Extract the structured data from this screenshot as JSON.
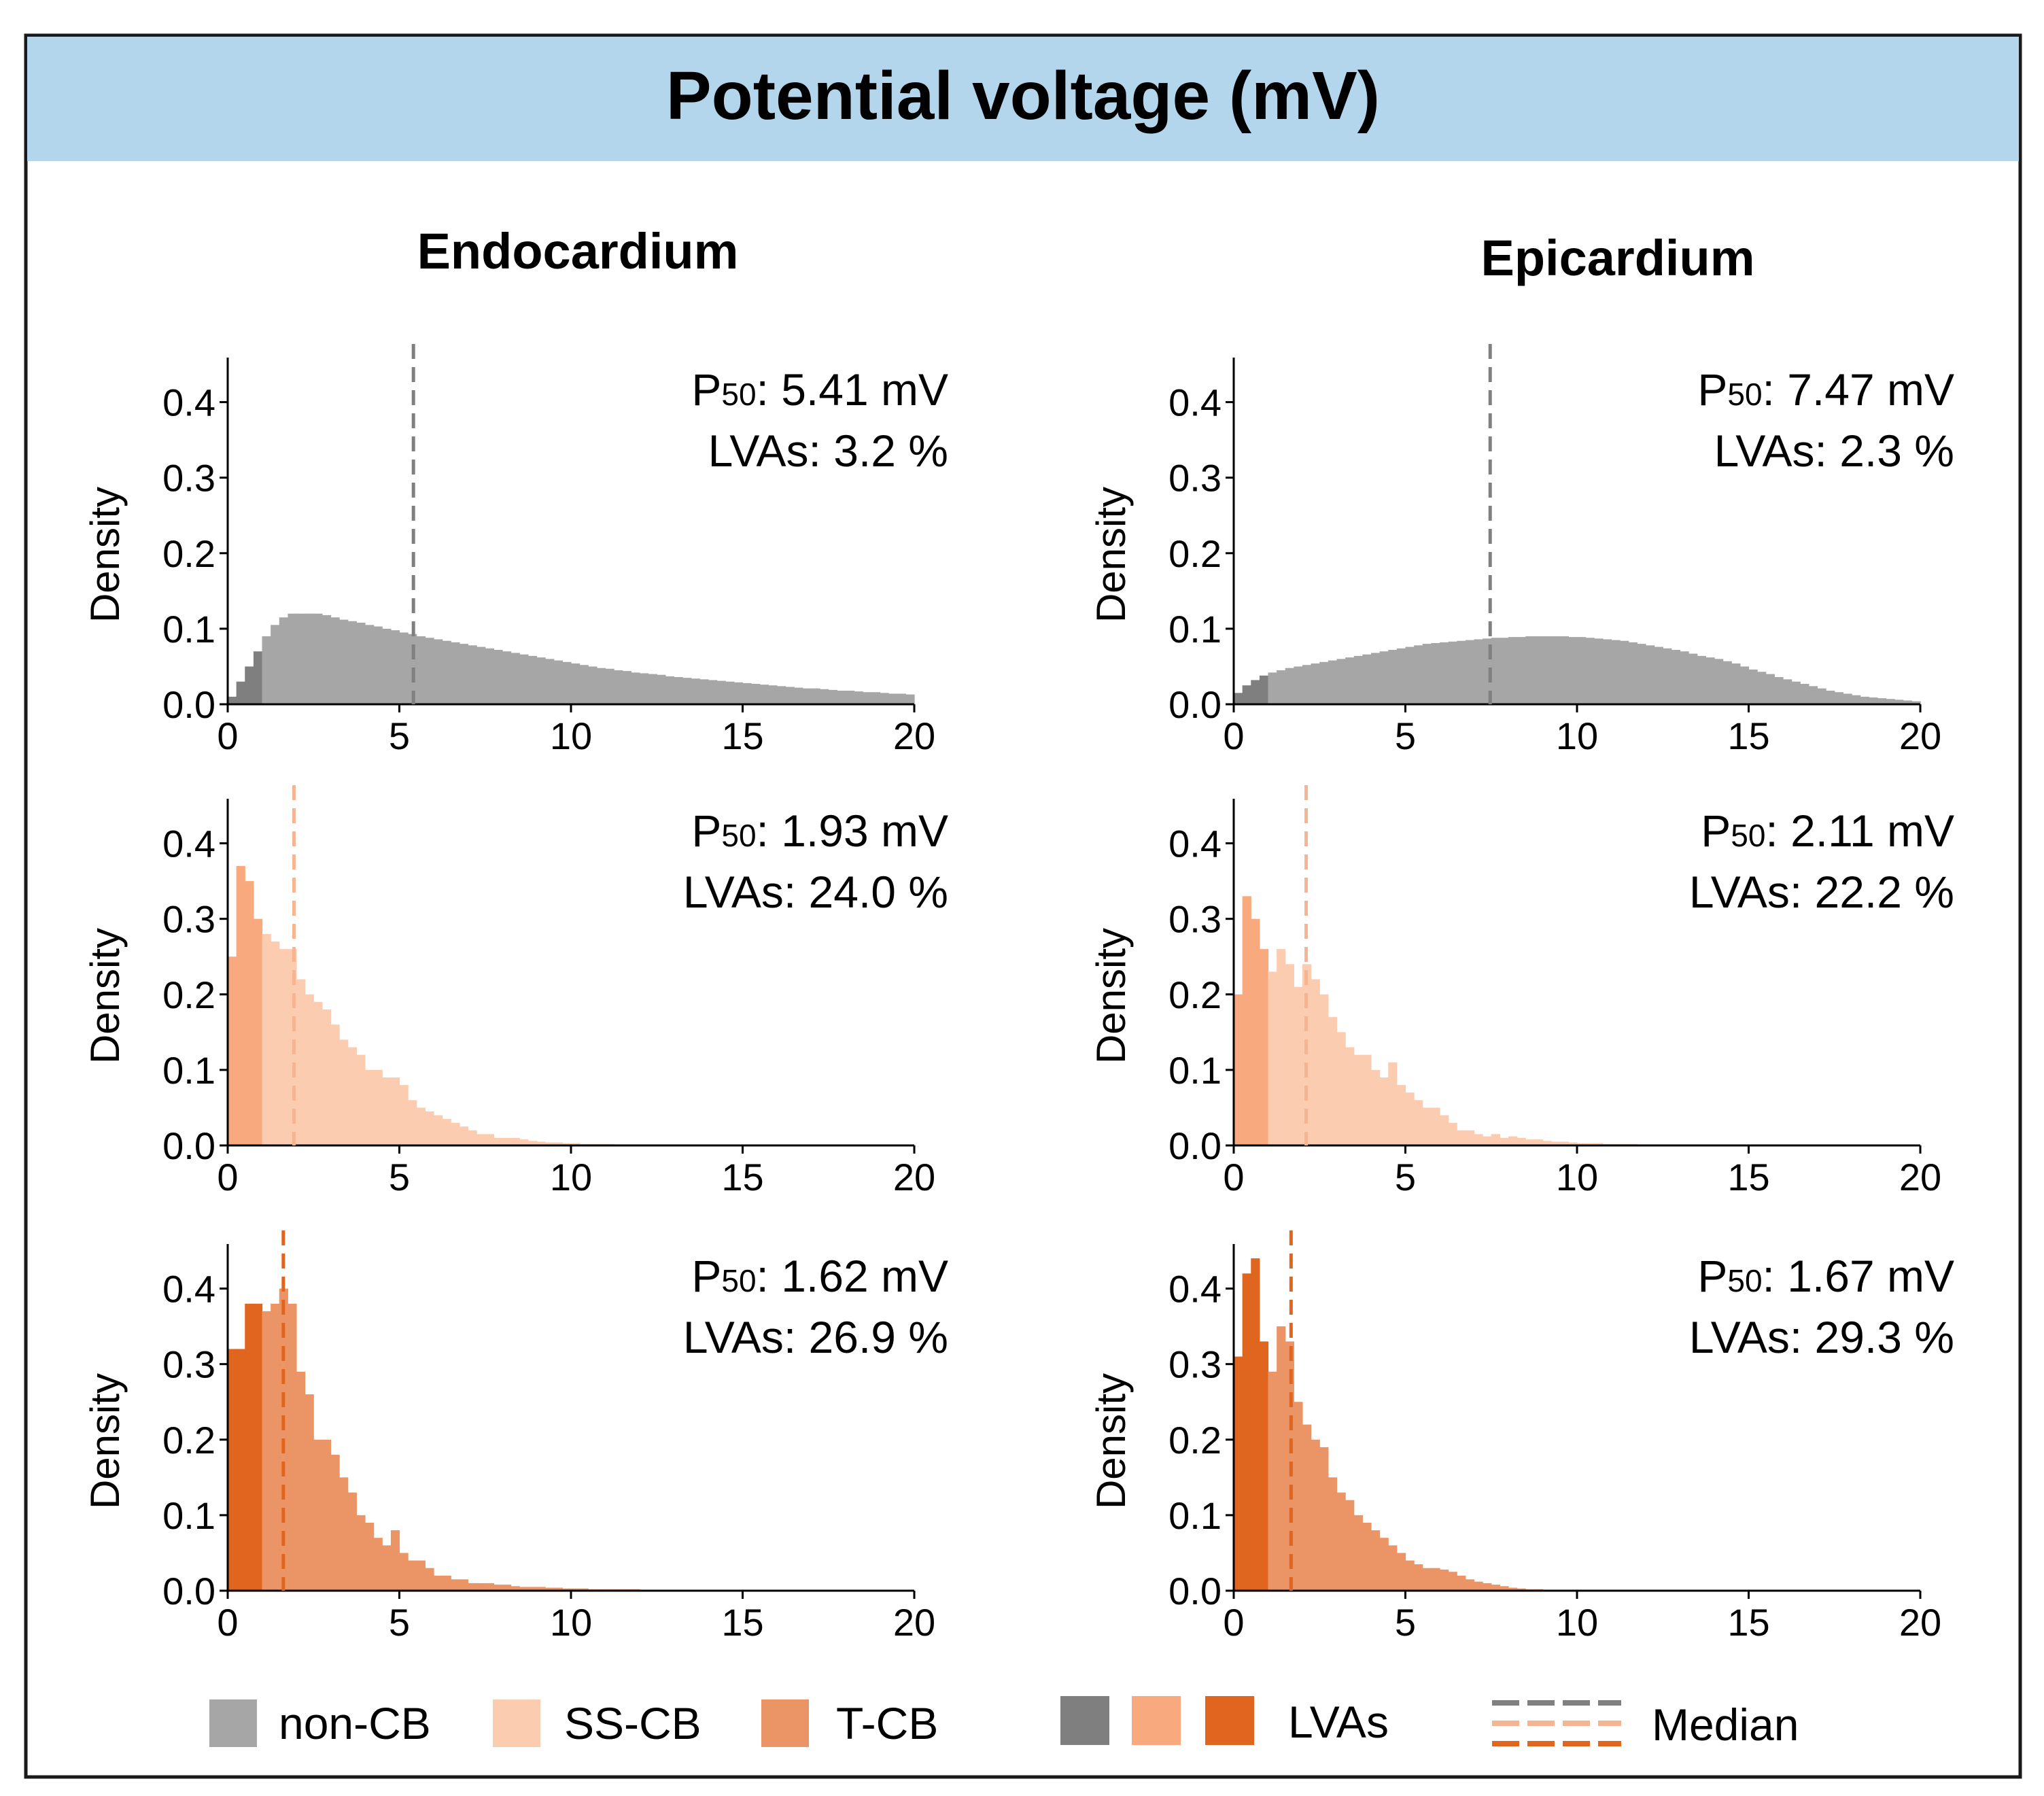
{
  "title": "Potential voltage (mV)",
  "colors": {
    "banner": "#b3d6ed",
    "border": "#1a1a1a",
    "non_cb": "#a6a6a6",
    "non_cb_lva": "#7f7f7f",
    "ss_cb": "#fbccaf",
    "ss_cb_lva": "#f8a97e",
    "t_cb": "#eb9466",
    "t_cb_lva": "#e0651f",
    "median_non_cb": "#808080",
    "median_ss_cb": "#f5b592",
    "median_t_cb": "#e0651f"
  },
  "columns": [
    "Endocardium",
    "Epicardium"
  ],
  "legend": {
    "items": [
      {
        "label": "non-CB",
        "color_key": "non_cb"
      },
      {
        "label": "SS-CB",
        "color_key": "ss_cb"
      },
      {
        "label": "T-CB",
        "color_key": "t_cb"
      }
    ],
    "lva_swatch_keys": [
      "non_cb_lva",
      "ss_cb_lva",
      "t_cb_lva"
    ],
    "lva_label": "LVAs",
    "median_line_keys": [
      "median_non_cb",
      "median_ss_cb",
      "median_t_cb"
    ],
    "median_label": "Median"
  },
  "chart_data": [
    {
      "type": "bar",
      "name": "endo-non-cb",
      "column": "Endocardium",
      "group": "non-CB",
      "xlim": [
        0,
        20
      ],
      "ylim": [
        0,
        0.45
      ],
      "xticks": [
        "0",
        "5",
        "10",
        "15",
        "20"
      ],
      "yticks": [
        "0.0",
        "0.1",
        "0.2",
        "0.3",
        "0.4"
      ],
      "ylabel": "Density",
      "p50_label": "P",
      "p50_sub": "50",
      "p50_value": ": 5.41 mV",
      "lva_text": "LVAs: 3.2 %",
      "median": 5.41,
      "lva_threshold": 1.0,
      "color_key": "non_cb",
      "lva_color_key": "non_cb_lva",
      "median_color_key": "median_non_cb",
      "bin_width": 0.25,
      "values": [
        0.01,
        0.03,
        0.05,
        0.07,
        0.09,
        0.105,
        0.115,
        0.12,
        0.12,
        0.12,
        0.12,
        0.118,
        0.115,
        0.112,
        0.11,
        0.108,
        0.105,
        0.103,
        0.1,
        0.098,
        0.095,
        0.093,
        0.09,
        0.088,
        0.086,
        0.084,
        0.082,
        0.08,
        0.078,
        0.076,
        0.074,
        0.072,
        0.07,
        0.068,
        0.066,
        0.064,
        0.062,
        0.06,
        0.058,
        0.056,
        0.054,
        0.052,
        0.05,
        0.048,
        0.047,
        0.045,
        0.044,
        0.042,
        0.041,
        0.04,
        0.039,
        0.037,
        0.036,
        0.035,
        0.034,
        0.033,
        0.032,
        0.031,
        0.03,
        0.029,
        0.028,
        0.027,
        0.026,
        0.025,
        0.024,
        0.023,
        0.022,
        0.021,
        0.021,
        0.02,
        0.019,
        0.018,
        0.018,
        0.017,
        0.016,
        0.016,
        0.015,
        0.014,
        0.014,
        0.013
      ]
    },
    {
      "type": "bar",
      "name": "epi-non-cb",
      "column": "Epicardium",
      "group": "non-CB",
      "xlim": [
        0,
        20
      ],
      "ylim": [
        0,
        0.45
      ],
      "xticks": [
        "0",
        "5",
        "10",
        "15",
        "20"
      ],
      "yticks": [
        "0.0",
        "0.1",
        "0.2",
        "0.3",
        "0.4"
      ],
      "ylabel": "Density",
      "p50_label": "P",
      "p50_sub": "50",
      "p50_value": ": 7.47 mV",
      "lva_text": "LVAs: 2.3 %",
      "median": 7.47,
      "lva_threshold": 1.0,
      "color_key": "non_cb",
      "lva_color_key": "non_cb_lva",
      "median_color_key": "median_non_cb",
      "bin_width": 0.25,
      "values": [
        0.015,
        0.025,
        0.032,
        0.038,
        0.042,
        0.045,
        0.048,
        0.05,
        0.052,
        0.054,
        0.056,
        0.058,
        0.06,
        0.062,
        0.064,
        0.066,
        0.068,
        0.07,
        0.072,
        0.074,
        0.076,
        0.078,
        0.08,
        0.081,
        0.082,
        0.083,
        0.084,
        0.085,
        0.086,
        0.087,
        0.088,
        0.088,
        0.089,
        0.089,
        0.09,
        0.09,
        0.09,
        0.09,
        0.09,
        0.089,
        0.089,
        0.088,
        0.087,
        0.086,
        0.085,
        0.084,
        0.082,
        0.08,
        0.078,
        0.076,
        0.074,
        0.072,
        0.07,
        0.067,
        0.064,
        0.062,
        0.06,
        0.057,
        0.054,
        0.05,
        0.046,
        0.043,
        0.04,
        0.036,
        0.033,
        0.03,
        0.027,
        0.024,
        0.021,
        0.018,
        0.016,
        0.014,
        0.012,
        0.01,
        0.009,
        0.008,
        0.007,
        0.006,
        0.005,
        0.004
      ]
    },
    {
      "type": "bar",
      "name": "endo-ss-cb",
      "column": "Endocardium",
      "group": "SS-CB",
      "xlim": [
        0,
        20
      ],
      "ylim": [
        0,
        0.45
      ],
      "xticks": [
        "0",
        "5",
        "10",
        "15",
        "20"
      ],
      "yticks": [
        "0.0",
        "0.1",
        "0.2",
        "0.3",
        "0.4"
      ],
      "ylabel": "Density",
      "p50_label": "P",
      "p50_sub": "50",
      "p50_value": ": 1.93 mV",
      "lva_text": "LVAs: 24.0 %",
      "median": 1.93,
      "lva_threshold": 1.0,
      "color_key": "ss_cb",
      "lva_color_key": "ss_cb_lva",
      "median_color_key": "median_ss_cb",
      "bin_width": 0.25,
      "values": [
        0.25,
        0.37,
        0.35,
        0.3,
        0.28,
        0.27,
        0.26,
        0.26,
        0.22,
        0.2,
        0.19,
        0.18,
        0.16,
        0.14,
        0.13,
        0.12,
        0.1,
        0.1,
        0.09,
        0.09,
        0.08,
        0.06,
        0.05,
        0.045,
        0.04,
        0.035,
        0.03,
        0.025,
        0.02,
        0.015,
        0.015,
        0.01,
        0.01,
        0.01,
        0.008,
        0.006,
        0.005,
        0.004,
        0.004,
        0.003,
        0.003,
        0.002,
        0.002,
        0.002,
        0.002,
        0.001,
        0.001,
        0.001,
        0.001,
        0.001,
        0.001,
        0.001,
        0.001,
        0,
        0,
        0,
        0,
        0,
        0,
        0,
        0,
        0,
        0,
        0,
        0,
        0,
        0,
        0,
        0,
        0,
        0,
        0,
        0,
        0,
        0,
        0,
        0,
        0,
        0,
        0
      ]
    },
    {
      "type": "bar",
      "name": "epi-ss-cb",
      "column": "Epicardium",
      "group": "SS-CB",
      "xlim": [
        0,
        20
      ],
      "ylim": [
        0,
        0.45
      ],
      "xticks": [
        "0",
        "5",
        "10",
        "15",
        "20"
      ],
      "yticks": [
        "0.0",
        "0.1",
        "0.2",
        "0.3",
        "0.4"
      ],
      "ylabel": "Density",
      "p50_label": "P",
      "p50_sub": "50",
      "p50_value": ": 2.11 mV",
      "lva_text": "LVAs: 22.2 %",
      "median": 2.11,
      "lva_threshold": 1.0,
      "color_key": "ss_cb",
      "lva_color_key": "ss_cb_lva",
      "median_color_key": "median_ss_cb",
      "bin_width": 0.25,
      "values": [
        0.2,
        0.33,
        0.3,
        0.26,
        0.23,
        0.26,
        0.24,
        0.21,
        0.24,
        0.22,
        0.2,
        0.17,
        0.15,
        0.13,
        0.12,
        0.12,
        0.1,
        0.09,
        0.11,
        0.08,
        0.07,
        0.06,
        0.05,
        0.05,
        0.04,
        0.03,
        0.02,
        0.02,
        0.015,
        0.012,
        0.015,
        0.01,
        0.012,
        0.01,
        0.008,
        0.008,
        0.006,
        0.005,
        0.005,
        0.004,
        0.003,
        0.003,
        0.003,
        0.002,
        0.002,
        0.002,
        0.002,
        0.001,
        0.001,
        0.001,
        0.001,
        0.001,
        0.001,
        0.001,
        0,
        0,
        0,
        0,
        0,
        0,
        0,
        0,
        0,
        0,
        0,
        0,
        0,
        0,
        0,
        0,
        0,
        0,
        0,
        0,
        0,
        0,
        0,
        0,
        0,
        0
      ]
    },
    {
      "type": "bar",
      "name": "endo-t-cb",
      "column": "Endocardium",
      "group": "T-CB",
      "xlim": [
        0,
        20
      ],
      "ylim": [
        0,
        0.45
      ],
      "xticks": [
        "0",
        "5",
        "10",
        "15",
        "20"
      ],
      "yticks": [
        "0.0",
        "0.1",
        "0.2",
        "0.3",
        "0.4"
      ],
      "ylabel": "Density",
      "p50_label": "P",
      "p50_sub": "50",
      "p50_value": ": 1.62 mV",
      "lva_text": "LVAs: 26.9 %",
      "median": 1.62,
      "lva_threshold": 1.0,
      "color_key": "t_cb",
      "lva_color_key": "t_cb_lva",
      "median_color_key": "median_t_cb",
      "bin_width": 0.25,
      "values": [
        0.32,
        0.32,
        0.38,
        0.38,
        0.37,
        0.38,
        0.4,
        0.38,
        0.29,
        0.26,
        0.2,
        0.2,
        0.18,
        0.15,
        0.13,
        0.1,
        0.09,
        0.07,
        0.06,
        0.08,
        0.05,
        0.04,
        0.04,
        0.03,
        0.02,
        0.02,
        0.015,
        0.015,
        0.01,
        0.01,
        0.01,
        0.008,
        0.008,
        0.006,
        0.005,
        0.005,
        0.005,
        0.004,
        0.004,
        0.003,
        0.003,
        0.003,
        0.002,
        0.002,
        0.002,
        0.002,
        0.002,
        0.002,
        0.001,
        0.001,
        0.001,
        0.001,
        0.001,
        0.001,
        0,
        0,
        0,
        0,
        0,
        0,
        0,
        0,
        0,
        0,
        0,
        0,
        0,
        0,
        0,
        0,
        0,
        0,
        0,
        0,
        0,
        0,
        0,
        0,
        0,
        0
      ]
    },
    {
      "type": "bar",
      "name": "epi-t-cb",
      "column": "Epicardium",
      "group": "T-CB",
      "xlim": [
        0,
        20
      ],
      "ylim": [
        0,
        0.45
      ],
      "xticks": [
        "0",
        "5",
        "10",
        "15",
        "20"
      ],
      "yticks": [
        "0.0",
        "0.1",
        "0.2",
        "0.3",
        "0.4"
      ],
      "ylabel": "Density",
      "p50_label": "P",
      "p50_sub": "50",
      "p50_value": ": 1.67 mV",
      "lva_text": "LVAs: 29.3 %",
      "median": 1.67,
      "lva_threshold": 1.0,
      "color_key": "t_cb",
      "lva_color_key": "t_cb_lva",
      "median_color_key": "median_t_cb",
      "bin_width": 0.25,
      "values": [
        0.31,
        0.42,
        0.44,
        0.33,
        0.29,
        0.35,
        0.33,
        0.25,
        0.22,
        0.2,
        0.19,
        0.15,
        0.13,
        0.12,
        0.1,
        0.09,
        0.08,
        0.07,
        0.06,
        0.05,
        0.04,
        0.035,
        0.03,
        0.03,
        0.028,
        0.025,
        0.02,
        0.015,
        0.012,
        0.01,
        0.008,
        0.006,
        0.004,
        0.003,
        0.002,
        0.002,
        0.001,
        0.001,
        0.001,
        0.001,
        0,
        0,
        0,
        0,
        0,
        0,
        0,
        0,
        0,
        0,
        0,
        0,
        0,
        0,
        0,
        0,
        0,
        0,
        0,
        0,
        0,
        0,
        0,
        0,
        0,
        0,
        0,
        0,
        0,
        0,
        0,
        0,
        0,
        0,
        0,
        0,
        0,
        0,
        0,
        0
      ]
    }
  ]
}
